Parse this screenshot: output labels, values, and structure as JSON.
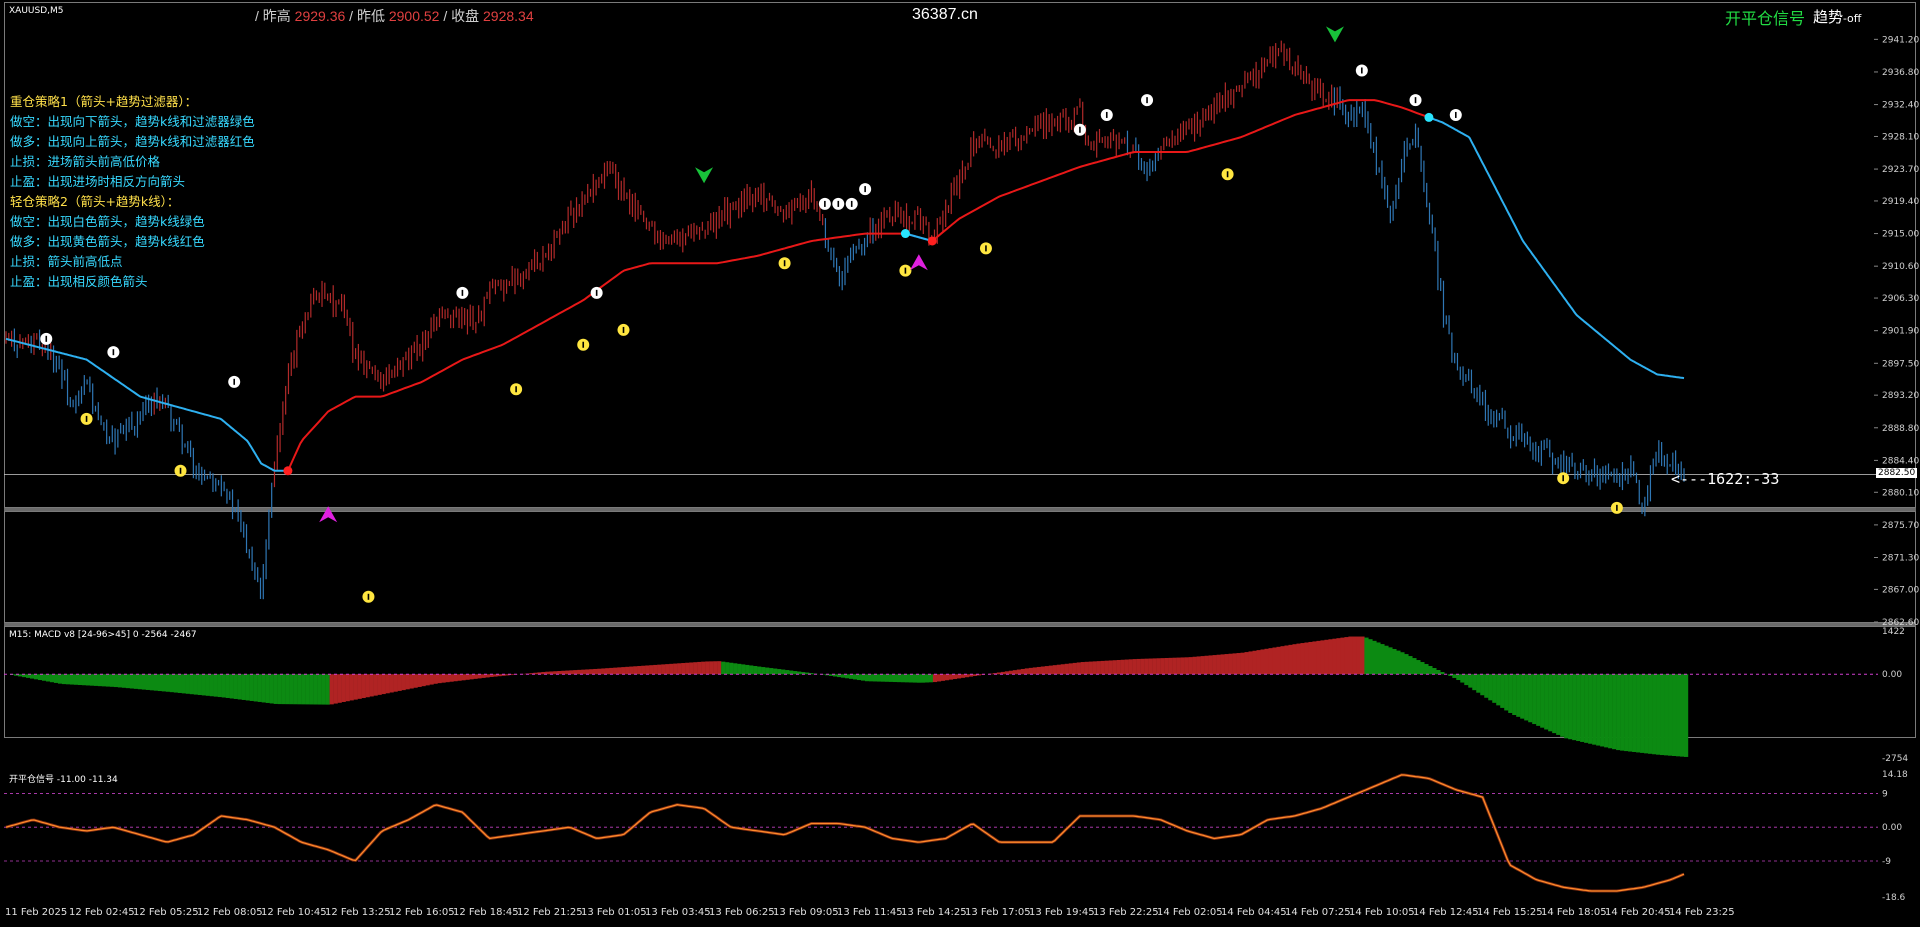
{
  "header": {
    "symbol": "XAUUSD,M5",
    "prev_high_label": "/ 昨高",
    "prev_high_value": "2929.36",
    "prev_low_label": "/ 昨低",
    "prev_low_value": "2900.52",
    "close_label": "/ 收盘",
    "close_value": "2928.34",
    "site": "36387.cn",
    "signal_label": "开平仓信号",
    "trend_label": "趋势",
    "trend_state": "-off"
  },
  "notes": [
    {
      "text": "重仓策略1（箭头+趋势过滤器）：",
      "color": "yellow"
    },
    {
      "text": "做空：出现向下箭头，趋势k线和过滤器绿色",
      "color": "cyan"
    },
    {
      "text": "做多：出现向上箭头，趋势k线和过滤器红色",
      "color": "cyan"
    },
    {
      "text": "止损：进场箭头前高低价格",
      "color": "cyan"
    },
    {
      "text": "止盈：出现进场时相反方向箭头",
      "color": "cyan"
    },
    {
      "text": "轻仓策略2（箭头+趋势k线）：",
      "color": "yellow"
    },
    {
      "text": "做空：出现白色箭头，趋势k线绿色",
      "color": "cyan"
    },
    {
      "text": "做多：出现黄色箭头，趋势k线红色",
      "color": "cyan"
    },
    {
      "text": "止损：箭头前高低点",
      "color": "cyan"
    },
    {
      "text": "止盈：出现相反颜色箭头",
      "color": "cyan"
    }
  ],
  "readout": "<---1622:-33",
  "current_price": "2882.50",
  "macd": {
    "title": "M15: MACD v8 [24-96>45] 0 -2564 -2467",
    "axis_labels": [
      "1422",
      "0.00",
      "-2754"
    ]
  },
  "osc": {
    "title": "开平仓信号 -11.00 -11.34",
    "axis_labels": [
      "14.18",
      "9",
      "0.00",
      "-9",
      "-18.6"
    ]
  },
  "chart_data": [
    {
      "type": "candlestick",
      "title": "XAUUSD,M5",
      "ylim": [
        2862.6,
        2943.0
      ],
      "y_ticks": [
        "2941.20",
        "2936.80",
        "2932.40",
        "2928.10",
        "2923.70",
        "2919.40",
        "2915.00",
        "2910.60",
        "2906.30",
        "2901.90",
        "2897.50",
        "2893.20",
        "2888.80",
        "2884.40",
        "2880.10",
        "2875.70",
        "2871.30",
        "2867.00",
        "2862.60"
      ],
      "x_ticks": [
        "11 Feb 2025",
        "12 Feb 02:45",
        "12 Feb 05:25",
        "12 Feb 08:05",
        "12 Feb 10:45",
        "12 Feb 13:25",
        "12 Feb 16:05",
        "12 Feb 18:45",
        "12 Feb 21:25",
        "13 Feb 01:05",
        "13 Feb 03:45",
        "13 Feb 06:25",
        "13 Feb 09:05",
        "13 Feb 11:45",
        "13 Feb 14:25",
        "13 Feb 17:05",
        "13 Feb 19:45",
        "13 Feb 22:25",
        "14 Feb 02:05",
        "14 Feb 04:45",
        "14 Feb 07:25",
        "14 Feb 10:05",
        "14 Feb 12:45",
        "14 Feb 15:25",
        "14 Feb 18:05",
        "14 Feb 20:45",
        "14 Feb 23:25"
      ],
      "price_path": [
        [
          0,
          2900.5
        ],
        [
          3,
          2900
        ],
        [
          4,
          2897
        ],
        [
          5,
          2891
        ],
        [
          6,
          2895
        ],
        [
          7,
          2889
        ],
        [
          8,
          2887
        ],
        [
          10,
          2890
        ],
        [
          11,
          2893
        ],
        [
          12,
          2891
        ],
        [
          13,
          2888
        ],
        [
          14,
          2883
        ],
        [
          16,
          2882
        ],
        [
          18,
          2873
        ],
        [
          19,
          2867
        ],
        [
          20,
          2885
        ],
        [
          21,
          2895
        ],
        [
          22,
          2903
        ],
        [
          23,
          2907
        ],
        [
          25,
          2905
        ],
        [
          26,
          2899
        ],
        [
          27,
          2897
        ],
        [
          28,
          2895
        ],
        [
          30,
          2898
        ],
        [
          32,
          2903
        ],
        [
          34,
          2904
        ],
        [
          35,
          2903
        ],
        [
          36,
          2907
        ],
        [
          38,
          2909
        ],
        [
          40,
          2912
        ],
        [
          42,
          2917
        ],
        [
          44,
          2922
        ],
        [
          45,
          2924
        ],
        [
          46,
          2920
        ],
        [
          47,
          2918
        ],
        [
          49,
          2914
        ],
        [
          50,
          2914
        ],
        [
          52,
          2916
        ],
        [
          54,
          2918
        ],
        [
          56,
          2921
        ],
        [
          57,
          2919
        ],
        [
          58,
          2918
        ],
        [
          60,
          2920
        ],
        [
          61,
          2915
        ],
        [
          62,
          2908
        ],
        [
          63,
          2912
        ],
        [
          64,
          2915
        ],
        [
          65,
          2916
        ],
        [
          66,
          2918
        ],
        [
          68,
          2917
        ],
        [
          69,
          2914
        ],
        [
          70,
          2918
        ],
        [
          72,
          2927
        ],
        [
          74,
          2927
        ],
        [
          76,
          2929
        ],
        [
          78,
          2930
        ],
        [
          80,
          2931
        ],
        [
          81,
          2927
        ],
        [
          82,
          2928
        ],
        [
          84,
          2926
        ],
        [
          85,
          2923
        ],
        [
          86,
          2926
        ],
        [
          88,
          2929
        ],
        [
          90,
          2932
        ],
        [
          92,
          2935
        ],
        [
          94,
          2938
        ],
        [
          95,
          2940
        ],
        [
          96,
          2937
        ],
        [
          97,
          2935
        ],
        [
          99,
          2933
        ],
        [
          100,
          2930
        ],
        [
          101,
          2932
        ],
        [
          102,
          2925
        ],
        [
          103,
          2917
        ],
        [
          104,
          2925
        ],
        [
          105,
          2928
        ],
        [
          106,
          2918
        ],
        [
          107,
          2905
        ],
        [
          108,
          2897
        ],
        [
          109,
          2895
        ],
        [
          111,
          2890
        ],
        [
          113,
          2887
        ],
        [
          115,
          2885
        ],
        [
          117,
          2883
        ],
        [
          119,
          2882
        ],
        [
          121,
          2883
        ],
        [
          122,
          2878
        ],
        [
          123,
          2886
        ],
        [
          124,
          2884
        ],
        [
          125,
          2883
        ]
      ],
      "series": [
        {
          "name": "trend_line",
          "points": [
            [
              0,
              2900.8
            ],
            [
              6,
              2898
            ],
            [
              10,
              2893
            ],
            [
              14,
              2891
            ],
            [
              16,
              2890
            ],
            [
              18,
              2887
            ],
            [
              19,
              2884
            ],
            [
              20,
              2883
            ],
            [
              21,
              2883
            ],
            [
              22,
              2887
            ],
            [
              24,
              2891
            ],
            [
              26,
              2893
            ],
            [
              28,
              2893
            ],
            [
              31,
              2895
            ],
            [
              34,
              2898
            ],
            [
              37,
              2900
            ],
            [
              40,
              2903
            ],
            [
              43,
              2906
            ],
            [
              46,
              2910
            ],
            [
              48,
              2911
            ],
            [
              53,
              2911
            ],
            [
              56,
              2912
            ],
            [
              60,
              2914
            ],
            [
              64,
              2915
            ],
            [
              67,
              2915
            ],
            [
              69,
              2914
            ],
            [
              71,
              2917
            ],
            [
              74,
              2920
            ],
            [
              77,
              2922
            ],
            [
              80,
              2924
            ],
            [
              84,
              2926
            ],
            [
              88,
              2926
            ],
            [
              92,
              2928
            ],
            [
              96,
              2931
            ],
            [
              100,
              2933
            ],
            [
              102,
              2933
            ],
            [
              104,
              2932
            ],
            [
              107,
              2930
            ],
            [
              109,
              2928
            ],
            [
              111,
              2921
            ],
            [
              113,
              2914
            ],
            [
              115,
              2909
            ],
            [
              117,
              2904
            ],
            [
              119,
              2901
            ],
            [
              121,
              2898
            ],
            [
              123,
              2896
            ],
            [
              125,
              2895.5
            ]
          ]
        }
      ],
      "markers": [
        {
          "type": "white-up",
          "x": 3,
          "y": 2900.8
        },
        {
          "type": "yellow-down",
          "x": 6,
          "y": 2890
        },
        {
          "type": "white-up",
          "x": 8,
          "y": 2899
        },
        {
          "type": "yellow-down",
          "x": 13,
          "y": 2883
        },
        {
          "type": "white-up",
          "x": 17,
          "y": 2895
        },
        {
          "type": "magenta-arrow",
          "x": 24,
          "y": 2877
        },
        {
          "type": "yellow-down",
          "x": 27,
          "y": 2866
        },
        {
          "type": "white-up",
          "x": 34,
          "y": 2907
        },
        {
          "type": "yellow-down",
          "x": 38,
          "y": 2894
        },
        {
          "type": "yellow-down",
          "x": 43,
          "y": 2900
        },
        {
          "type": "white-up",
          "x": 44,
          "y": 2907
        },
        {
          "type": "yellow-down",
          "x": 46,
          "y": 2902
        },
        {
          "type": "green-arrow",
          "x": 52,
          "y": 2923
        },
        {
          "type": "yellow-down",
          "x": 58,
          "y": 2911
        },
        {
          "type": "white-up",
          "x": 61,
          "y": 2919
        },
        {
          "type": "white-up",
          "x": 62,
          "y": 2919
        },
        {
          "type": "white-up",
          "x": 63,
          "y": 2919
        },
        {
          "type": "white-up",
          "x": 64,
          "y": 2921
        },
        {
          "type": "yellow-down",
          "x": 67,
          "y": 2910
        },
        {
          "type": "magenta-arrow",
          "x": 68,
          "y": 2911
        },
        {
          "type": "yellow-down",
          "x": 73,
          "y": 2913
        },
        {
          "type": "white-up",
          "x": 80,
          "y": 2929
        },
        {
          "type": "white-up",
          "x": 82,
          "y": 2931
        },
        {
          "type": "white-up",
          "x": 85,
          "y": 2933
        },
        {
          "type": "yellow-down",
          "x": 91,
          "y": 2923
        },
        {
          "type": "green-arrow",
          "x": 99,
          "y": 2942
        },
        {
          "type": "white-up",
          "x": 101,
          "y": 2937
        },
        {
          "type": "white-up",
          "x": 105,
          "y": 2933
        },
        {
          "type": "white-up",
          "x": 108,
          "y": 2931
        },
        {
          "type": "yellow-down",
          "x": 116,
          "y": 2882
        },
        {
          "type": "yellow-down",
          "x": 120,
          "y": 2878
        }
      ]
    },
    {
      "type": "histogram",
      "title": "M15: MACD v8 [24-96>45] 0 -2564 -2467",
      "ylim": [
        -2754,
        1422
      ],
      "x": [
        0,
        4,
        8,
        12,
        16,
        20,
        24,
        28,
        32,
        36,
        40,
        44,
        48,
        52,
        53,
        56,
        60,
        64,
        68,
        69,
        72,
        76,
        80,
        84,
        88,
        92,
        96,
        100,
        101,
        104,
        108,
        112,
        116,
        120,
        123,
        126
      ],
      "values": [
        0,
        -320,
        -420,
        -580,
        -760,
        -980,
        -1000,
        -650,
        -300,
        -90,
        80,
        180,
        300,
        420,
        430,
        250,
        30,
        -230,
        -280,
        -260,
        -60,
        200,
        400,
        500,
        560,
        710,
        1000,
        1240,
        1240,
        700,
        -180,
        -1300,
        -2100,
        -2500,
        -2650,
        -2754
      ],
      "colors": [
        "green",
        "green",
        "green",
        "green",
        "green",
        "green",
        "red",
        "red",
        "red",
        "red",
        "red",
        "red",
        "red",
        "red",
        "green",
        "green",
        "green",
        "green",
        "green",
        "red",
        "red",
        "red",
        "red",
        "red",
        "red",
        "red",
        "red",
        "red",
        "green",
        "green",
        "green",
        "green",
        "green",
        "green",
        "green",
        "green"
      ]
    },
    {
      "type": "line",
      "title": "开平仓信号 -11.00 -11.34",
      "ylim": [
        -18.6,
        14.18
      ],
      "x": [
        0,
        2,
        4,
        6,
        8,
        10,
        12,
        14,
        16,
        18,
        20,
        22,
        24,
        26,
        28,
        30,
        32,
        34,
        36,
        38,
        40,
        42,
        44,
        46,
        48,
        50,
        52,
        54,
        56,
        58,
        60,
        62,
        64,
        66,
        68,
        70,
        72,
        74,
        76,
        78,
        80,
        82,
        84,
        86,
        88,
        90,
        92,
        94,
        96,
        98,
        100,
        102,
        104,
        106,
        108,
        110,
        112,
        114,
        116,
        118,
        120,
        122,
        124,
        126
      ],
      "values": [
        0,
        2,
        0,
        -1,
        0,
        -2,
        -4,
        -2,
        3,
        2,
        0,
        -4,
        -6,
        -9,
        -1,
        2,
        6,
        4,
        -3,
        -2,
        -1,
        0,
        -3,
        -2,
        4,
        6,
        5,
        0,
        -1,
        -2,
        1,
        1,
        0,
        -3,
        -4,
        -3,
        1,
        -4,
        -4,
        -4,
        3,
        3,
        3,
        2,
        -1,
        -3,
        -2,
        2,
        3,
        5,
        8,
        11,
        14,
        13,
        10,
        8,
        -10,
        -14,
        -16,
        -17,
        -17,
        -16,
        -14,
        -11
      ]
    }
  ]
}
